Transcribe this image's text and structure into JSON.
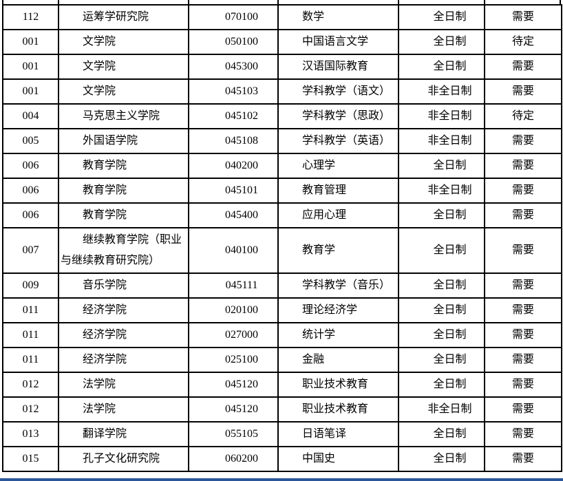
{
  "colors": {
    "grid_border": "#000000",
    "page_background": "#ffffff",
    "bottom_bar": "#2b579a"
  },
  "table": {
    "rows": [
      {
        "school_code": "112",
        "school_name": "运筹学研究院",
        "major_code": "070100",
        "major_name": "数学",
        "study_mode": "全日制",
        "status": "需要"
      },
      {
        "school_code": "001",
        "school_name": "文学院",
        "major_code": "050100",
        "major_name": "中国语言文学",
        "study_mode": "全日制",
        "status": "待定"
      },
      {
        "school_code": "001",
        "school_name": "文学院",
        "major_code": "045300",
        "major_name": "汉语国际教育",
        "study_mode": "全日制",
        "status": "需要"
      },
      {
        "school_code": "001",
        "school_name": "文学院",
        "major_code": "045103",
        "major_name": "学科教学（语文）",
        "study_mode": "非全日制",
        "status": "需要"
      },
      {
        "school_code": "004",
        "school_name": "马克思主义学院",
        "major_code": "045102",
        "major_name": "学科教学（思政）",
        "study_mode": "非全日制",
        "status": "待定"
      },
      {
        "school_code": "005",
        "school_name": "外国语学院",
        "major_code": "045108",
        "major_name": "学科教学（英语）",
        "study_mode": "非全日制",
        "status": "需要"
      },
      {
        "school_code": "006",
        "school_name": "教育学院",
        "major_code": "040200",
        "major_name": "心理学",
        "study_mode": "全日制",
        "status": "需要"
      },
      {
        "school_code": "006",
        "school_name": "教育学院",
        "major_code": "045101",
        "major_name": "教育管理",
        "study_mode": "非全日制",
        "status": "需要"
      },
      {
        "school_code": "006",
        "school_name": "教育学院",
        "major_code": "045400",
        "major_name": "应用心理",
        "study_mode": "全日制",
        "status": "需要"
      },
      {
        "school_code": "007",
        "school_name": "继续教育学院（职业与继续教育研究院）",
        "major_code": "040100",
        "major_name": "教育学",
        "study_mode": "全日制",
        "status": "需要"
      },
      {
        "school_code": "009",
        "school_name": "音乐学院",
        "major_code": "045111",
        "major_name": "学科教学（音乐）",
        "study_mode": "全日制",
        "status": "需要"
      },
      {
        "school_code": "011",
        "school_name": "经济学院",
        "major_code": "020100",
        "major_name": "理论经济学",
        "study_mode": "全日制",
        "status": "需要"
      },
      {
        "school_code": "011",
        "school_name": "经济学院",
        "major_code": "027000",
        "major_name": "统计学",
        "study_mode": "全日制",
        "status": "需要"
      },
      {
        "school_code": "011",
        "school_name": "经济学院",
        "major_code": "025100",
        "major_name": "金融",
        "study_mode": "全日制",
        "status": "需要"
      },
      {
        "school_code": "012",
        "school_name": "法学院",
        "major_code": "045120",
        "major_name": "职业技术教育",
        "study_mode": "全日制",
        "status": "需要"
      },
      {
        "school_code": "012",
        "school_name": "法学院",
        "major_code": "045120",
        "major_name": "职业技术教育",
        "study_mode": "非全日制",
        "status": "需要"
      },
      {
        "school_code": "013",
        "school_name": "翻译学院",
        "major_code": "055105",
        "major_name": "日语笔译",
        "study_mode": "全日制",
        "status": "需要"
      },
      {
        "school_code": "015",
        "school_name": "孔子文化研究院",
        "major_code": "060200",
        "major_name": "中国史",
        "study_mode": "全日制",
        "status": "需要"
      }
    ]
  }
}
